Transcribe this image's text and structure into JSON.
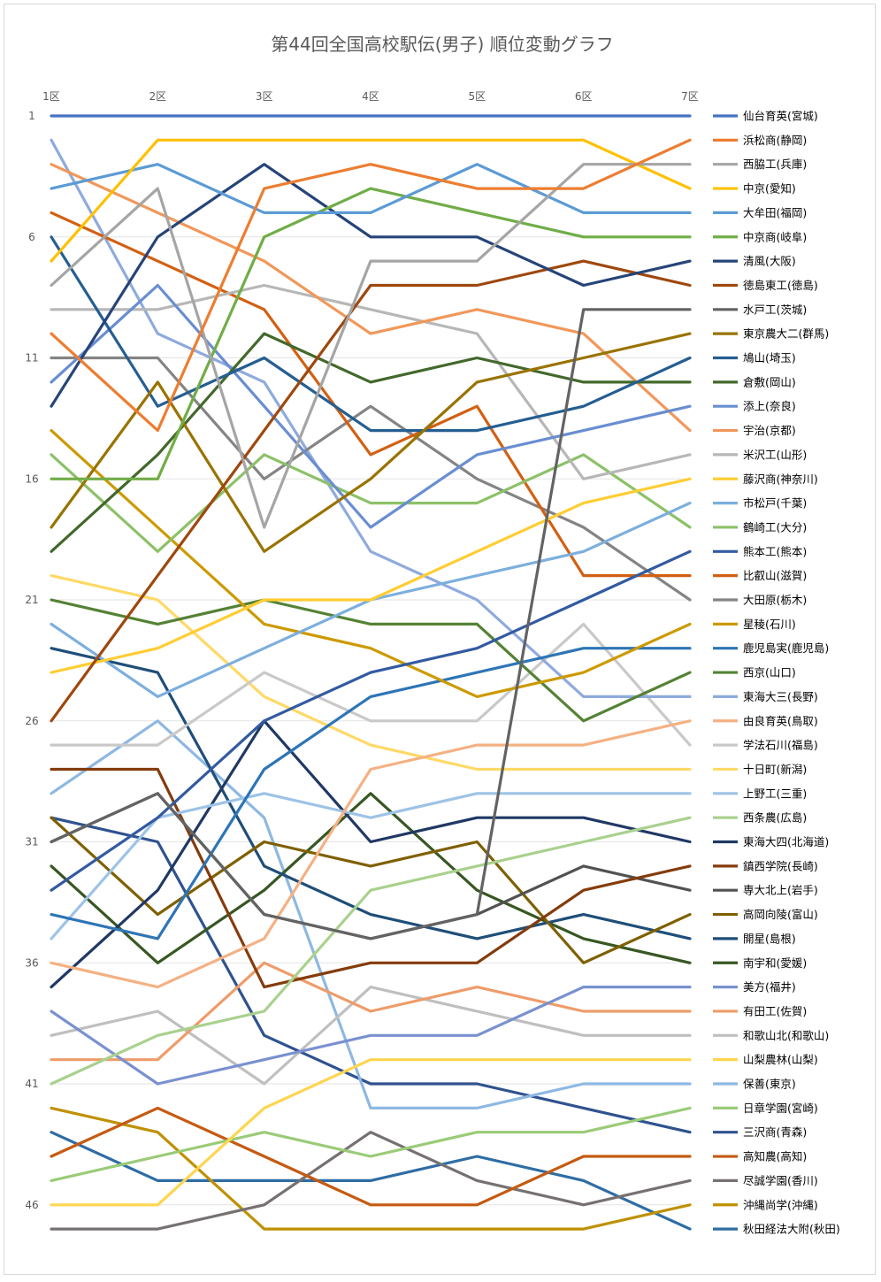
{
  "chart_data": {
    "type": "line",
    "title": "第44回全国高校駅伝(男子) 順位変動グラフ",
    "categories": [
      "1区",
      "2区",
      "3区",
      "4区",
      "5区",
      "6区",
      "7区"
    ],
    "y_ticks": [
      "1",
      "6",
      "11",
      "16",
      "21",
      "26",
      "31",
      "36",
      "41",
      "46"
    ],
    "ylim": [
      1,
      47
    ],
    "y_reversed": true,
    "grid": true,
    "legend_position": "right",
    "series": [
      {
        "name": "仙台育英(宮城)",
        "color": "#4472C4",
        "values": [
          1,
          1,
          1,
          1,
          1,
          1,
          1
        ]
      },
      {
        "name": "浜松商(静岡)",
        "color": "#ED7D31",
        "values": [
          10,
          14,
          4,
          3,
          4,
          4,
          2
        ]
      },
      {
        "name": "西脇工(兵庫)",
        "color": "#A5A5A5",
        "values": [
          8,
          4,
          18,
          7,
          7,
          3,
          3
        ]
      },
      {
        "name": "中京(愛知)",
        "color": "#FFC000",
        "values": [
          7,
          2,
          2,
          2,
          2,
          2,
          4
        ]
      },
      {
        "name": "大牟田(福岡)",
        "color": "#5B9BD5",
        "values": [
          4,
          3,
          5,
          5,
          3,
          5,
          5
        ]
      },
      {
        "name": "中京商(岐阜)",
        "color": "#70AD47",
        "values": [
          16,
          16,
          6,
          4,
          5,
          6,
          6
        ]
      },
      {
        "name": "清風(大阪)",
        "color": "#264478",
        "values": [
          13,
          6,
          3,
          6,
          6,
          8,
          7
        ]
      },
      {
        "name": "徳島東工(徳島)",
        "color": "#9E480E",
        "values": [
          26,
          20,
          14,
          8,
          8,
          7,
          8
        ]
      },
      {
        "name": "水戸工(茨城)",
        "color": "#636363",
        "values": [
          31,
          29,
          34,
          35,
          34,
          9,
          9
        ]
      },
      {
        "name": "東京農大二(群馬)",
        "color": "#997300",
        "values": [
          18,
          12,
          19,
          16,
          12,
          11,
          10
        ]
      },
      {
        "name": "鳩山(埼玉)",
        "color": "#255E91",
        "values": [
          6,
          13,
          11,
          14,
          14,
          13,
          11
        ]
      },
      {
        "name": "倉敷(岡山)",
        "color": "#43682B",
        "values": [
          19,
          15,
          10,
          12,
          11,
          12,
          12
        ]
      },
      {
        "name": "添上(奈良)",
        "color": "#698ED0",
        "values": [
          12,
          8,
          13,
          18,
          15,
          14,
          13
        ]
      },
      {
        "name": "宇治(京都)",
        "color": "#F1975A",
        "values": [
          3,
          5,
          7,
          10,
          9,
          10,
          14
        ]
      },
      {
        "name": "米沢工(山形)",
        "color": "#B7B7B7",
        "values": [
          9,
          9,
          8,
          9,
          10,
          16,
          15
        ]
      },
      {
        "name": "藤沢商(神奈川)",
        "color": "#FFCD33",
        "values": [
          24,
          23,
          21,
          21,
          19,
          17,
          16
        ]
      },
      {
        "name": "市松戸(千葉)",
        "color": "#7CAFDD",
        "values": [
          22,
          25,
          23,
          21,
          20,
          19,
          17
        ]
      },
      {
        "name": "鶴崎工(大分)",
        "color": "#8CC168",
        "values": [
          15,
          19,
          15,
          17,
          17,
          15,
          18
        ]
      },
      {
        "name": "熊本工(熊本)",
        "color": "#335AA1",
        "values": [
          33,
          30,
          26,
          24,
          23,
          21,
          19
        ]
      },
      {
        "name": "比叡山(滋賀)",
        "color": "#D26012",
        "values": [
          5,
          7,
          9,
          15,
          13,
          20,
          20
        ]
      },
      {
        "name": "大田原(栃木)",
        "color": "#848484",
        "values": [
          11,
          11,
          16,
          13,
          16,
          18,
          21
        ]
      },
      {
        "name": "星稜(石川)",
        "color": "#CC9A00",
        "values": [
          14,
          18,
          22,
          23,
          25,
          24,
          22
        ]
      },
      {
        "name": "鹿児島実(鹿児島)",
        "color": "#2E75B6",
        "values": [
          34,
          35,
          28,
          25,
          24,
          23,
          23
        ]
      },
      {
        "name": "西京(山口)",
        "color": "#548235",
        "values": [
          21,
          22,
          21,
          22,
          22,
          26,
          24
        ]
      },
      {
        "name": "東海大三(長野)",
        "color": "#8FAADC",
        "values": [
          2,
          10,
          12,
          19,
          21,
          25,
          25
        ]
      },
      {
        "name": "由良育英(鳥取)",
        "color": "#F4B183",
        "values": [
          36,
          37,
          35,
          28,
          27,
          27,
          26
        ]
      },
      {
        "name": "学法石川(福島)",
        "color": "#C9C9C9",
        "values": [
          27,
          27,
          24,
          26,
          26,
          22,
          27
        ]
      },
      {
        "name": "十日町(新潟)",
        "color": "#FFD966",
        "values": [
          20,
          21,
          25,
          27,
          28,
          28,
          28
        ]
      },
      {
        "name": "上野工(三重)",
        "color": "#9DC3E6",
        "values": [
          35,
          30,
          29,
          30,
          29,
          29,
          29
        ]
      },
      {
        "name": "西条農(広島)",
        "color": "#A9D18E",
        "values": [
          41,
          39,
          38,
          33,
          32,
          31,
          30
        ]
      },
      {
        "name": "東海大四(北海道)",
        "color": "#203864",
        "values": [
          37,
          33,
          26,
          31,
          30,
          30,
          31
        ]
      },
      {
        "name": "鎮西学院(長崎)",
        "color": "#843C0C",
        "values": [
          28,
          28,
          37,
          36,
          36,
          33,
          32
        ]
      },
      {
        "name": "専大北上(岩手)",
        "color": "#525252",
        "values": [
          31,
          29,
          34,
          35,
          34,
          32,
          33
        ]
      },
      {
        "name": "高岡向陵(富山)",
        "color": "#7F6000",
        "values": [
          30,
          34,
          31,
          32,
          31,
          36,
          34
        ]
      },
      {
        "name": "開星(島根)",
        "color": "#1F4E79",
        "values": [
          23,
          24,
          32,
          34,
          35,
          34,
          35
        ]
      },
      {
        "name": "南宇和(愛媛)",
        "color": "#385723",
        "values": [
          32,
          36,
          33,
          29,
          33,
          35,
          36
        ]
      },
      {
        "name": "美方(福井)",
        "color": "#7991CF",
        "values": [
          38,
          41,
          40,
          39,
          39,
          37,
          37
        ]
      },
      {
        "name": "有田工(佐賀)",
        "color": "#EE9C6A",
        "values": [
          40,
          40,
          36,
          38,
          37,
          38,
          38
        ]
      },
      {
        "name": "和歌山北(和歌山)",
        "color": "#BFBFBF",
        "values": [
          39,
          38,
          41,
          37,
          38,
          39,
          39
        ]
      },
      {
        "name": "山梨農林(山梨)",
        "color": "#FFD54F",
        "values": [
          46,
          46,
          42,
          40,
          40,
          40,
          40
        ]
      },
      {
        "name": "保善(東京)",
        "color": "#8EB8E2",
        "values": [
          29,
          26,
          30,
          42,
          42,
          41,
          41
        ]
      },
      {
        "name": "日章学園(宮崎)",
        "color": "#9ACB77",
        "values": [
          45,
          44,
          43,
          44,
          43,
          43,
          42
        ]
      },
      {
        "name": "三沢商(青森)",
        "color": "#2F528F",
        "values": [
          30,
          31,
          39,
          41,
          41,
          42,
          43
        ]
      },
      {
        "name": "高知農(高知)",
        "color": "#C55A11",
        "values": [
          44,
          42,
          44,
          46,
          46,
          44,
          44
        ]
      },
      {
        "name": "尽誠学園(香川)",
        "color": "#767171",
        "values": [
          47,
          47,
          46,
          43,
          45,
          46,
          45
        ]
      },
      {
        "name": "沖縄尚学(沖縄)",
        "color": "#BF9000",
        "values": [
          42,
          43,
          47,
          47,
          47,
          47,
          46
        ]
      },
      {
        "name": "秋田経法大附(秋田)",
        "color": "#2E6DA4",
        "values": [
          43,
          45,
          45,
          45,
          44,
          45,
          47
        ]
      }
    ]
  }
}
